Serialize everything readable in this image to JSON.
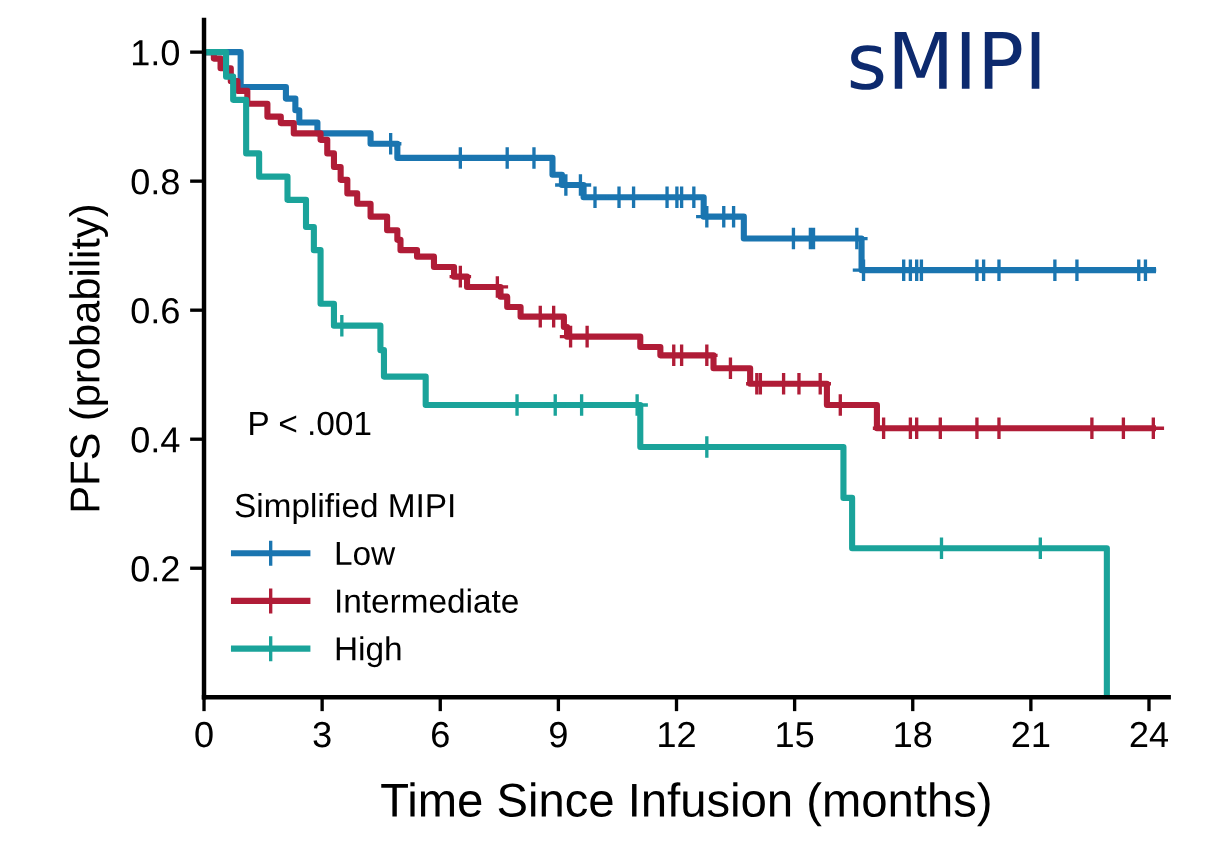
{
  "chart_data": {
    "type": "step",
    "title": "sMIPI",
    "xlabel": "Time Since Infusion (months)",
    "ylabel": "PFS (probability)",
    "legend_title": "Simplified MIPI",
    "annotations": [
      "P < .001"
    ],
    "xlim": [
      0,
      24.5
    ],
    "ylim": [
      0,
      1.05
    ],
    "xticks": [
      0,
      3,
      6,
      9,
      12,
      15,
      18,
      21,
      24
    ],
    "yticks": [
      0.2,
      0.4,
      0.6,
      0.8,
      {
        "value": 1,
        "label": "1.0"
      }
    ],
    "grid": false,
    "legend": "bottom left",
    "marker": "none",
    "line_style": "solid",
    "series": [
      {
        "name": "Low",
        "color": "#1a75b0",
        "x": [
          0,
          0.93,
          2.08,
          2.32,
          2.42,
          2.88,
          4.23,
          4.91,
          8.85,
          9.09,
          9.64,
          12.69,
          13.71,
          16.7,
          24.1
        ],
        "values": [
          1.0,
          0.946,
          0.928,
          0.91,
          0.891,
          0.874,
          0.858,
          0.836,
          0.81,
          0.794,
          0.775,
          0.745,
          0.711,
          0.662,
          0.662
        ]
      },
      {
        "name": "Intermediate",
        "color": "#b01c37",
        "x": [
          0,
          0.25,
          0.42,
          0.68,
          0.85,
          1.1,
          1.61,
          1.95,
          2.28,
          2.96,
          3.13,
          3.3,
          3.47,
          3.64,
          3.89,
          4.23,
          4.65,
          4.91,
          4.99,
          5.41,
          5.84,
          6.35,
          6.68,
          7.53,
          7.7,
          8.04,
          9.14,
          9.22,
          11.08,
          11.59,
          12.94,
          13.87,
          15.82,
          17.09,
          24.1
        ],
        "values": [
          1.0,
          0.99,
          0.975,
          0.955,
          0.94,
          0.92,
          0.9,
          0.89,
          0.874,
          0.864,
          0.843,
          0.822,
          0.802,
          0.781,
          0.765,
          0.745,
          0.724,
          0.709,
          0.693,
          0.683,
          0.667,
          0.652,
          0.636,
          0.621,
          0.605,
          0.59,
          0.574,
          0.559,
          0.543,
          0.53,
          0.51,
          0.486,
          0.453,
          0.417,
          0.417
        ]
      },
      {
        "name": "High",
        "color": "#1aa39a",
        "x": [
          0,
          0.56,
          0.74,
          1.07,
          1.4,
          2.12,
          2.59,
          2.79,
          2.96,
          3.3,
          4.48,
          4.57,
          5.63,
          11.08,
          16.24,
          16.46,
          22.93
        ],
        "values": [
          1.0,
          0.962,
          0.926,
          0.843,
          0.807,
          0.771,
          0.729,
          0.693,
          0.61,
          0.576,
          0.538,
          0.497,
          0.453,
          0.388,
          0.309,
          0.231,
          0.0
        ]
      },
      {
        "type": "scatter",
        "marker": "cross",
        "color": "#1a75b0",
        "x": [
          4.74,
          6.51,
          7.7,
          8.38,
          9.19,
          9.56,
          9.93,
          10.54,
          10.91,
          11.76,
          12.01,
          12.13,
          12.44,
          12.77,
          13.2,
          13.45,
          14.97,
          15.4,
          15.48,
          16.58,
          16.75,
          17.77,
          17.94,
          18.1,
          18.22,
          19.63,
          19.8,
          20.19,
          21.61,
          22.17,
          23.74,
          23.91
        ],
        "values": [
          0.858,
          0.836,
          0.836,
          0.836,
          0.794,
          0.794,
          0.775,
          0.775,
          0.775,
          0.775,
          0.775,
          0.775,
          0.775,
          0.745,
          0.745,
          0.745,
          0.711,
          0.711,
          0.711,
          0.711,
          0.662,
          0.662,
          0.662,
          0.662,
          0.662,
          0.662,
          0.662,
          0.662,
          0.662,
          0.662,
          0.662,
          0.662
        ]
      },
      {
        "type": "scatter",
        "marker": "cross",
        "color": "#b01c37",
        "x": [
          6.51,
          7.45,
          8.54,
          8.88,
          9.31,
          9.73,
          11.93,
          12.13,
          12.77,
          13.37,
          14.04,
          14.13,
          14.72,
          15.11,
          15.65,
          16.16,
          17.26,
          17.94,
          18.1,
          18.7,
          19.63,
          20.19,
          22.55,
          23.35,
          24.11
        ],
        "values": [
          0.652,
          0.636,
          0.59,
          0.59,
          0.559,
          0.559,
          0.53,
          0.53,
          0.53,
          0.51,
          0.486,
          0.486,
          0.486,
          0.486,
          0.486,
          0.453,
          0.417,
          0.417,
          0.417,
          0.417,
          0.417,
          0.417,
          0.417,
          0.417,
          0.417
        ]
      },
      {
        "type": "scatter",
        "marker": "cross",
        "color": "#1aa39a",
        "x": [
          3.5,
          7.95,
          8.92,
          9.59,
          11.0,
          12.77,
          18.73,
          21.24
        ],
        "values": [
          0.576,
          0.453,
          0.453,
          0.453,
          0.453,
          0.388,
          0.231,
          0.231
        ]
      }
    ]
  }
}
